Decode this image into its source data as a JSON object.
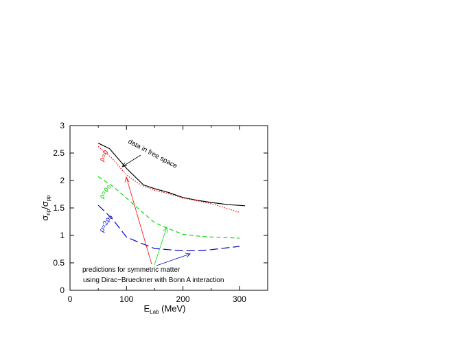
{
  "chart_data": {
    "type": "line",
    "xlabel": {
      "main": "E",
      "sub": "Lab",
      "rest": " (MeV)"
    },
    "ylabel": {
      "num": "σ",
      "num_sub": "np",
      "sep": "/",
      "den": "σ",
      "den_sub": "pp"
    },
    "xlim": [
      0,
      350
    ],
    "ylim": [
      0,
      3
    ],
    "xticks": [
      0,
      100,
      200,
      300
    ],
    "yticks": [
      0,
      0.5,
      1,
      1.5,
      2,
      2.5,
      3
    ],
    "grid": false,
    "series": [
      {
        "key": "free",
        "color": "#000000",
        "style": "solid",
        "x": [
          50,
          70,
          100,
          130,
          150,
          175,
          200,
          225,
          250,
          280,
          310
        ],
        "y": [
          2.68,
          2.58,
          2.22,
          1.92,
          1.85,
          1.78,
          1.69,
          1.64,
          1.6,
          1.56,
          1.54
        ]
      },
      {
        "key": "rho0",
        "color": "#ff0000",
        "style": "dotted",
        "x": [
          50,
          75,
          100,
          125,
          150,
          175,
          200,
          225,
          250,
          275,
          300
        ],
        "y": [
          2.62,
          2.4,
          2.1,
          1.92,
          1.82,
          1.76,
          1.68,
          1.63,
          1.58,
          1.5,
          1.42
        ]
      },
      {
        "key": "rho_rho0",
        "color": "#00dd00",
        "style": "dashed",
        "x": [
          50,
          75,
          100,
          125,
          150,
          175,
          200,
          225,
          250,
          275,
          300
        ],
        "y": [
          2.07,
          1.9,
          1.68,
          1.45,
          1.23,
          1.12,
          1.02,
          0.99,
          0.97,
          0.96,
          0.95
        ]
      },
      {
        "key": "rho_2rho0",
        "color": "#0000cc",
        "style": "longdash",
        "x": [
          50,
          75,
          100,
          125,
          150,
          175,
          200,
          225,
          250,
          275,
          300
        ],
        "y": [
          1.55,
          1.3,
          0.97,
          0.86,
          0.76,
          0.74,
          0.72,
          0.72,
          0.74,
          0.77,
          0.8
        ]
      }
    ],
    "annotations": {
      "free_space": "data in free space",
      "rho0_label": {
        "base": "ρ=0"
      },
      "rho1_label": {
        "base": "ρ=ρ",
        "sub": "0"
      },
      "rho2_label": {
        "base": "ρ=2ρ",
        "sub": "0"
      },
      "pred_line1": "predictions for symmetric matter",
      "pred_line2": "using Dirac−Brueckner with Bonn A interaction"
    }
  }
}
